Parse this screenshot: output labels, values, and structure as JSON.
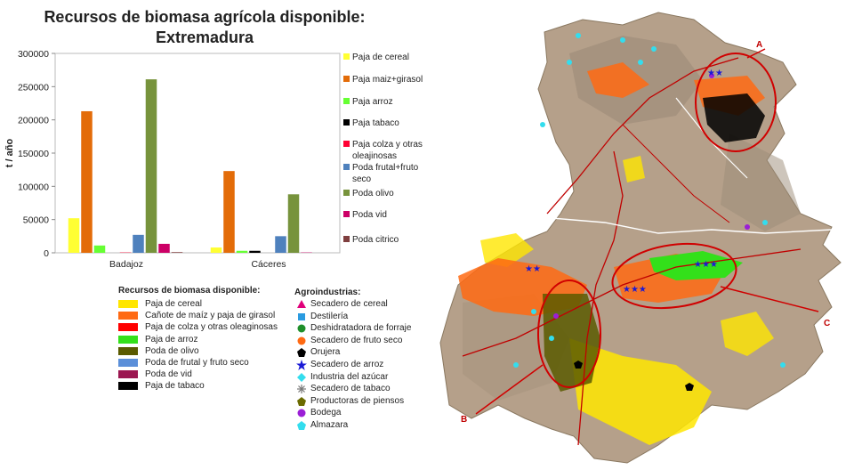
{
  "chart_data": {
    "type": "bar",
    "title": "Recursos de biomasa agrícola disponible:",
    "subtitle": "Extremadura",
    "ylabel": "t / año",
    "ylim": [
      0,
      300000
    ],
    "yticks": [
      "300000",
      "250000",
      "200000",
      "150000",
      "100000",
      "50000",
      "0"
    ],
    "ytick_values": [
      300000,
      250000,
      200000,
      150000,
      100000,
      50000,
      0
    ],
    "categories": [
      "Badajoz",
      "Cáceres"
    ],
    "series": [
      {
        "name": "Paja de cereal",
        "color": "#ffff33",
        "values": [
          52000,
          8000
        ]
      },
      {
        "name": "Paja maiz+girasol",
        "color": "#e36c09",
        "values": [
          213000,
          123000
        ]
      },
      {
        "name": "Paja arroz",
        "color": "#66ff33",
        "values": [
          11000,
          3000
        ]
      },
      {
        "name": "Paja tabaco",
        "color": "#000000",
        "values": [
          0,
          3000
        ]
      },
      {
        "name": "Paja colza y otras oleajinosas",
        "color": "#ff0033",
        "values": [
          500,
          0
        ]
      },
      {
        "name": "Poda frutal+fruto seco",
        "color": "#4f81bd",
        "values": [
          27000,
          25000
        ]
      },
      {
        "name": "Poda olivo",
        "color": "#77933c",
        "values": [
          261000,
          88000
        ]
      },
      {
        "name": "Poda vid",
        "color": "#cc0066",
        "values": [
          13500,
          500
        ]
      },
      {
        "name": "Poda citrico",
        "color": "#7f3f3f",
        "values": [
          1000,
          0
        ]
      }
    ]
  },
  "legend_lines": [
    [
      "Paja de cereal"
    ],
    [
      "Paja maiz+girasol"
    ],
    [
      "Paja arroz"
    ],
    [
      "Paja tabaco"
    ],
    [
      "Paja colza y otras",
      "oleajinosas"
    ],
    [
      "Poda frutal+fruto",
      "seco"
    ],
    [
      "Poda olivo"
    ],
    [
      "Poda vid"
    ],
    [
      "Poda citrico"
    ]
  ],
  "resources_legend": {
    "title": "Recursos de biomasa disponible:",
    "items": [
      {
        "label": "Paja de cereal",
        "color": "#ffe600"
      },
      {
        "label": "Cañote de maíz y paja de girasol",
        "color": "#ff6a13"
      },
      {
        "label": "Paja de colza y otras oleaginosas",
        "color": "#ff0000"
      },
      {
        "label": "Paja de arroz",
        "color": "#33e01a"
      },
      {
        "label": "Poda de olivo",
        "color": "#5a5a00"
      },
      {
        "label": "Poda de frutal y fruto seco",
        "color": "#5b8fd9"
      },
      {
        "label": "Poda de vid",
        "color": "#9b1650"
      },
      {
        "label": "Paja de tabaco",
        "color": "#000000"
      }
    ]
  },
  "agro_legend": {
    "title": "Agroindustrias:",
    "items": [
      {
        "label": "Secadero de cereal",
        "icon": "triangle-icon",
        "color": "#e0007a"
      },
      {
        "label": "Destilería",
        "icon": "square-icon",
        "color": "#2b9be0"
      },
      {
        "label": "Deshidratadora de forraje",
        "icon": "circle-icon",
        "color": "#1f8f2a"
      },
      {
        "label": "Secadero de fruto seco",
        "icon": "circle-icon",
        "color": "#ff6a13"
      },
      {
        "label": "Orujera",
        "icon": "pentagon-icon",
        "color": "#000000"
      },
      {
        "label": "Secadero de arroz",
        "icon": "star-icon",
        "color": "#1a1ad6"
      },
      {
        "label": "Industria del azúcar",
        "icon": "diamond-icon",
        "color": "#33ddee"
      },
      {
        "label": "Secadero de tabaco",
        "icon": "asterisk-icon",
        "color": "#777777"
      },
      {
        "label": "Productoras de piensos",
        "icon": "pentagon-icon",
        "color": "#6b6b00"
      },
      {
        "label": "Bodega",
        "icon": "circle-icon",
        "color": "#9b1fd6"
      },
      {
        "label": "Almazara",
        "icon": "pentagon-icon",
        "color": "#33ddee"
      }
    ]
  },
  "map": {
    "labels": [
      "A",
      "B",
      "C"
    ],
    "colors": {
      "land": "#b5a08a",
      "border": "#ffffff",
      "road": "#c00000",
      "circle": "#d00000"
    }
  }
}
